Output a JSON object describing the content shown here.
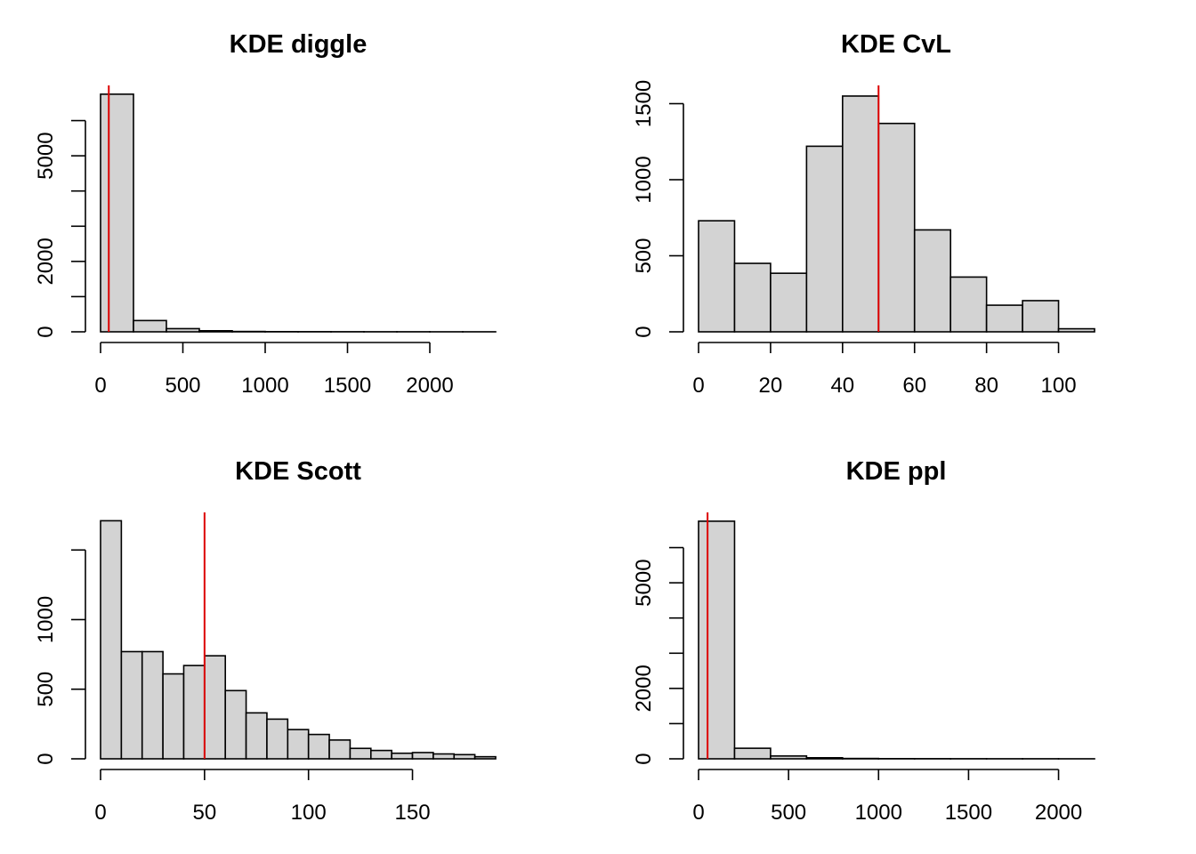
{
  "chart_data": [
    {
      "type": "bar",
      "title": "KDE diggle",
      "xlabel": "",
      "ylabel": "",
      "x_ticks": [
        0,
        500,
        1000,
        1500,
        2000
      ],
      "y_ticks": [
        0,
        2000,
        5000
      ],
      "y_minor_ticks": [
        0,
        1000,
        2000,
        3000,
        4000,
        5000,
        6000
      ],
      "xlim": [
        0,
        2400
      ],
      "ylim": [
        0,
        7000
      ],
      "bin_edges": [
        0,
        200,
        400,
        600,
        800,
        1000,
        1200,
        1400,
        1600,
        1800,
        2000,
        2200,
        2400
      ],
      "values": [
        6750,
        320,
        90,
        30,
        10,
        5,
        4,
        3,
        2,
        2,
        1,
        1
      ],
      "vline": 50
    },
    {
      "type": "bar",
      "title": "KDE CvL",
      "xlabel": "",
      "ylabel": "",
      "x_ticks": [
        0,
        20,
        40,
        60,
        80,
        100
      ],
      "y_ticks": [
        0,
        500,
        1000,
        1500
      ],
      "y_minor_ticks": [
        0,
        500,
        1000,
        1500
      ],
      "xlim": [
        0,
        110
      ],
      "ylim": [
        0,
        1620
      ],
      "bin_edges": [
        0,
        10,
        20,
        30,
        40,
        50,
        60,
        70,
        80,
        90,
        100,
        110
      ],
      "values": [
        730,
        450,
        385,
        1220,
        1550,
        1370,
        670,
        360,
        175,
        205,
        20
      ],
      "vline": 50
    },
    {
      "type": "bar",
      "title": "KDE Scott",
      "xlabel": "",
      "ylabel": "",
      "x_ticks": [
        0,
        50,
        100,
        150
      ],
      "y_ticks": [
        0,
        500,
        1000
      ],
      "y_minor_ticks": [
        0,
        500,
        1000,
        1500
      ],
      "xlim": [
        0,
        190
      ],
      "ylim": [
        0,
        1770
      ],
      "bin_edges": [
        0,
        10,
        20,
        30,
        40,
        50,
        60,
        70,
        80,
        90,
        100,
        110,
        120,
        130,
        140,
        150,
        160,
        170,
        180,
        190
      ],
      "values": [
        1710,
        770,
        770,
        610,
        670,
        740,
        490,
        330,
        285,
        210,
        175,
        135,
        75,
        60,
        40,
        45,
        35,
        30,
        15
      ],
      "vline": 50
    },
    {
      "type": "bar",
      "title": "KDE ppl",
      "xlabel": "",
      "ylabel": "",
      "x_ticks": [
        0,
        500,
        1000,
        1500,
        2000
      ],
      "y_ticks": [
        0,
        2000,
        5000
      ],
      "y_minor_ticks": [
        0,
        1000,
        2000,
        3000,
        4000,
        5000,
        6000
      ],
      "xlim": [
        0,
        2200
      ],
      "ylim": [
        0,
        7000
      ],
      "bin_edges": [
        0,
        200,
        400,
        600,
        800,
        1000,
        1200,
        1400,
        1600,
        1800,
        2000,
        2200
      ],
      "values": [
        6750,
        300,
        80,
        30,
        10,
        5,
        4,
        3,
        2,
        2,
        1
      ],
      "vline": 50
    }
  ]
}
